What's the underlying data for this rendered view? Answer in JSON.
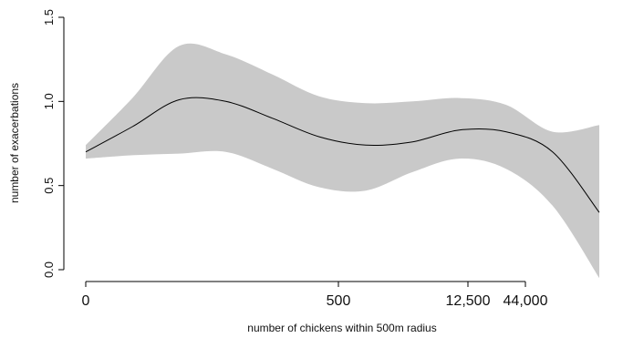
{
  "chart_data": {
    "type": "line",
    "xlabel": "number of chickens within 500m radius",
    "ylabel": "number of exacerbations",
    "ylim": [
      0,
      1.5
    ],
    "y_ticks": [
      "0.0",
      "0.5",
      "1.0",
      "1.5"
    ],
    "x_ticks": [
      "0",
      "500",
      "12,500",
      "44,000"
    ],
    "x_scale": "nonlinear",
    "grid": false,
    "legend": "none",
    "colors": {
      "band": "#c9c9c9",
      "line": "#000000"
    },
    "series": [
      {
        "values": [
          0.7,
          0.85,
          1.01,
          1.0,
          0.9,
          0.79,
          0.74,
          0.76,
          0.83,
          0.82,
          0.7,
          0.34
        ],
        "lower": [
          0.66,
          0.68,
          0.69,
          0.7,
          0.6,
          0.49,
          0.47,
          0.58,
          0.66,
          0.6,
          0.38,
          -0.05
        ],
        "upper": [
          0.74,
          1.02,
          1.33,
          1.28,
          1.16,
          1.03,
          0.99,
          1.0,
          1.02,
          0.98,
          0.82,
          0.86
        ]
      }
    ]
  }
}
